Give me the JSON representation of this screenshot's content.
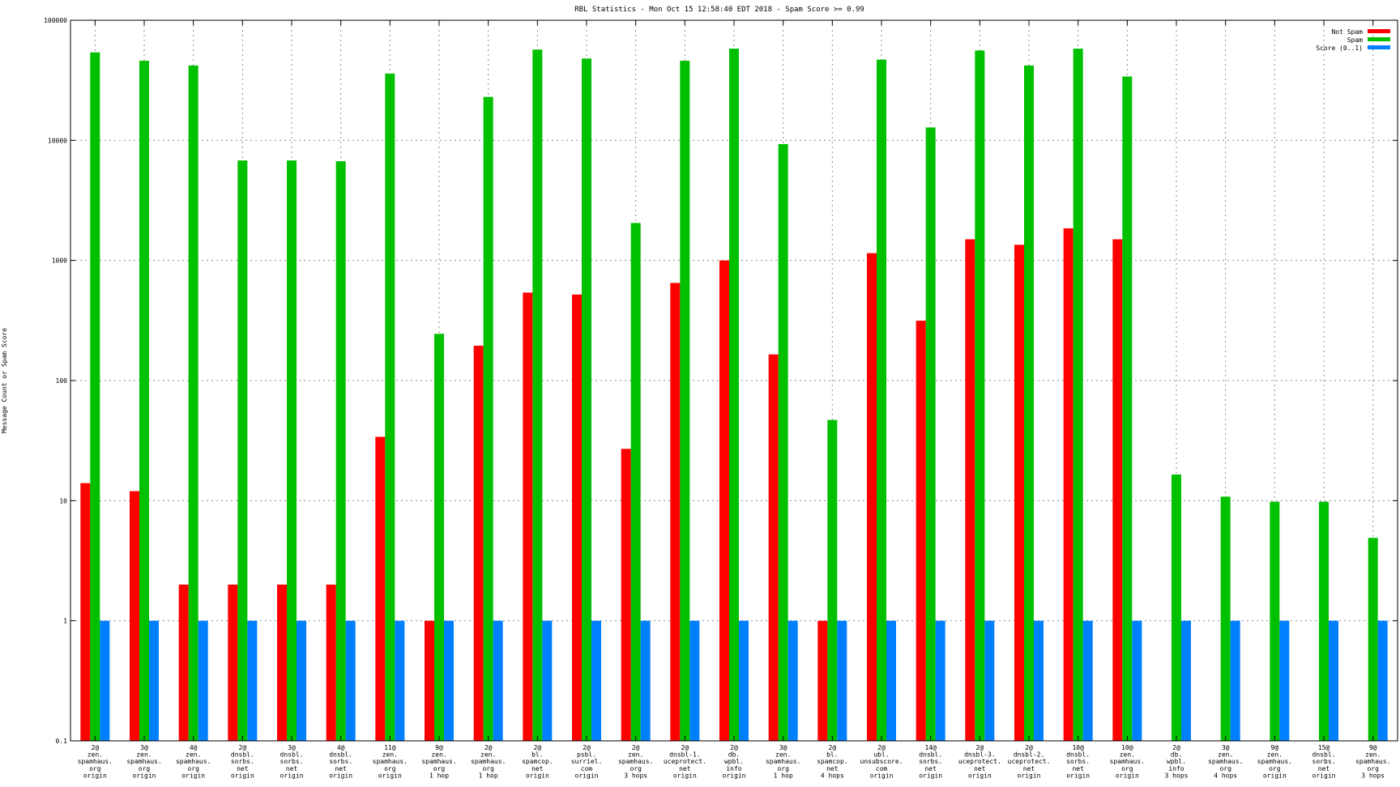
{
  "chart_data": {
    "type": "bar",
    "title": "RBL Statistics - Mon Oct 15 12:58:40 EDT 2018 - Spam Score >= 0.99",
    "ylabel": "Message Count or Spam Score",
    "xlabel": "",
    "yscale": "log",
    "ylim": [
      0.1,
      100000
    ],
    "yticks": [
      {
        "value": 0.1,
        "label": "0.1"
      },
      {
        "value": 1,
        "label": "1"
      },
      {
        "value": 10,
        "label": "10"
      },
      {
        "value": 100,
        "label": "100"
      },
      {
        "value": 1000,
        "label": "1000"
      },
      {
        "value": 10000,
        "label": "10000"
      },
      {
        "value": 100000,
        "label": "100000"
      }
    ],
    "grid": true,
    "legend_position": "top-right",
    "categories": [
      [
        "2@",
        "zen.",
        "spamhaus.",
        "org",
        "origin"
      ],
      [
        "3@",
        "zen.",
        "spamhaus.",
        "org",
        "origin"
      ],
      [
        "4@",
        "zen.",
        "spamhaus.",
        "org",
        "origin"
      ],
      [
        "2@",
        "dnsbl.",
        "sorbs.",
        "net",
        "origin"
      ],
      [
        "3@",
        "dnsbl.",
        "sorbs.",
        "net",
        "origin"
      ],
      [
        "4@",
        "dnsbl.",
        "sorbs.",
        "net",
        "origin"
      ],
      [
        "11@",
        "zen.",
        "spamhaus.",
        "org",
        "origin"
      ],
      [
        "9@",
        "zen.",
        "spamhaus.",
        "org",
        "1 hop"
      ],
      [
        "2@",
        "zen.",
        "spamhaus.",
        "org",
        "1 hop"
      ],
      [
        "2@",
        "bl.",
        "spamcop.",
        "net",
        "origin"
      ],
      [
        "2@",
        "psbl.",
        "surriel.",
        "com",
        "origin"
      ],
      [
        "2@",
        "zen.",
        "spamhaus.",
        "org",
        "3 hops"
      ],
      [
        "2@",
        "dnsbl-1.",
        "uceprotect.",
        "net",
        "origin"
      ],
      [
        "2@",
        "db.",
        "wpbl.",
        "info",
        "origin"
      ],
      [
        "3@",
        "zen.",
        "spamhaus.",
        "org",
        "1 hop"
      ],
      [
        "2@",
        "bl.",
        "spamcop.",
        "net",
        "4 hops"
      ],
      [
        "2@",
        "ubl.",
        "unsubscore.",
        "com",
        "origin"
      ],
      [
        "14@",
        "dnsbl.",
        "sorbs.",
        "net",
        "origin"
      ],
      [
        "2@",
        "dnsbl-3.",
        "uceprotect.",
        "net",
        "origin"
      ],
      [
        "2@",
        "dnsbl-2.",
        "uceprotect.",
        "net",
        "origin"
      ],
      [
        "10@",
        "dnsbl.",
        "sorbs.",
        "net",
        "origin"
      ],
      [
        "10@",
        "zen.",
        "spamhaus.",
        "org",
        "origin"
      ],
      [
        "2@",
        "db.",
        "wpbl.",
        "info",
        "3 hops"
      ],
      [
        "3@",
        "zen.",
        "spamhaus.",
        "org",
        "4 hops"
      ],
      [
        "9@",
        "zen.",
        "spamhaus.",
        "org",
        "origin"
      ],
      [
        "15@",
        "dnsbl.",
        "sorbs.",
        "net",
        "origin"
      ],
      [
        "9@",
        "zen.",
        "spamhaus.",
        "org",
        "3 hops"
      ]
    ],
    "series": [
      {
        "name": "Not Spam",
        "color": "#ff0000",
        "values": [
          14,
          12,
          2,
          2,
          2,
          2,
          34,
          1,
          195,
          540,
          520,
          27,
          650,
          1000,
          165,
          1,
          1150,
          315,
          1500,
          1350,
          1850,
          1500,
          null,
          null,
          null,
          null,
          null
        ]
      },
      {
        "name": "Spam",
        "color": "#00c000",
        "values": [
          54000,
          46000,
          42000,
          6800,
          6800,
          6700,
          36000,
          245,
          23000,
          57000,
          48000,
          2050,
          46000,
          58000,
          9300,
          47,
          47000,
          12800,
          56000,
          42000,
          58000,
          34000,
          16.5,
          10.8,
          9.8,
          9.8,
          4.9
        ]
      },
      {
        "name": "Score (0..1)",
        "color": "#0080ff",
        "values": [
          1,
          1,
          1,
          1,
          1,
          1,
          1,
          1,
          1,
          1,
          1,
          1,
          1,
          1,
          1,
          1,
          1,
          1,
          1,
          1,
          1,
          1,
          1,
          1,
          1,
          1,
          1
        ]
      }
    ]
  }
}
